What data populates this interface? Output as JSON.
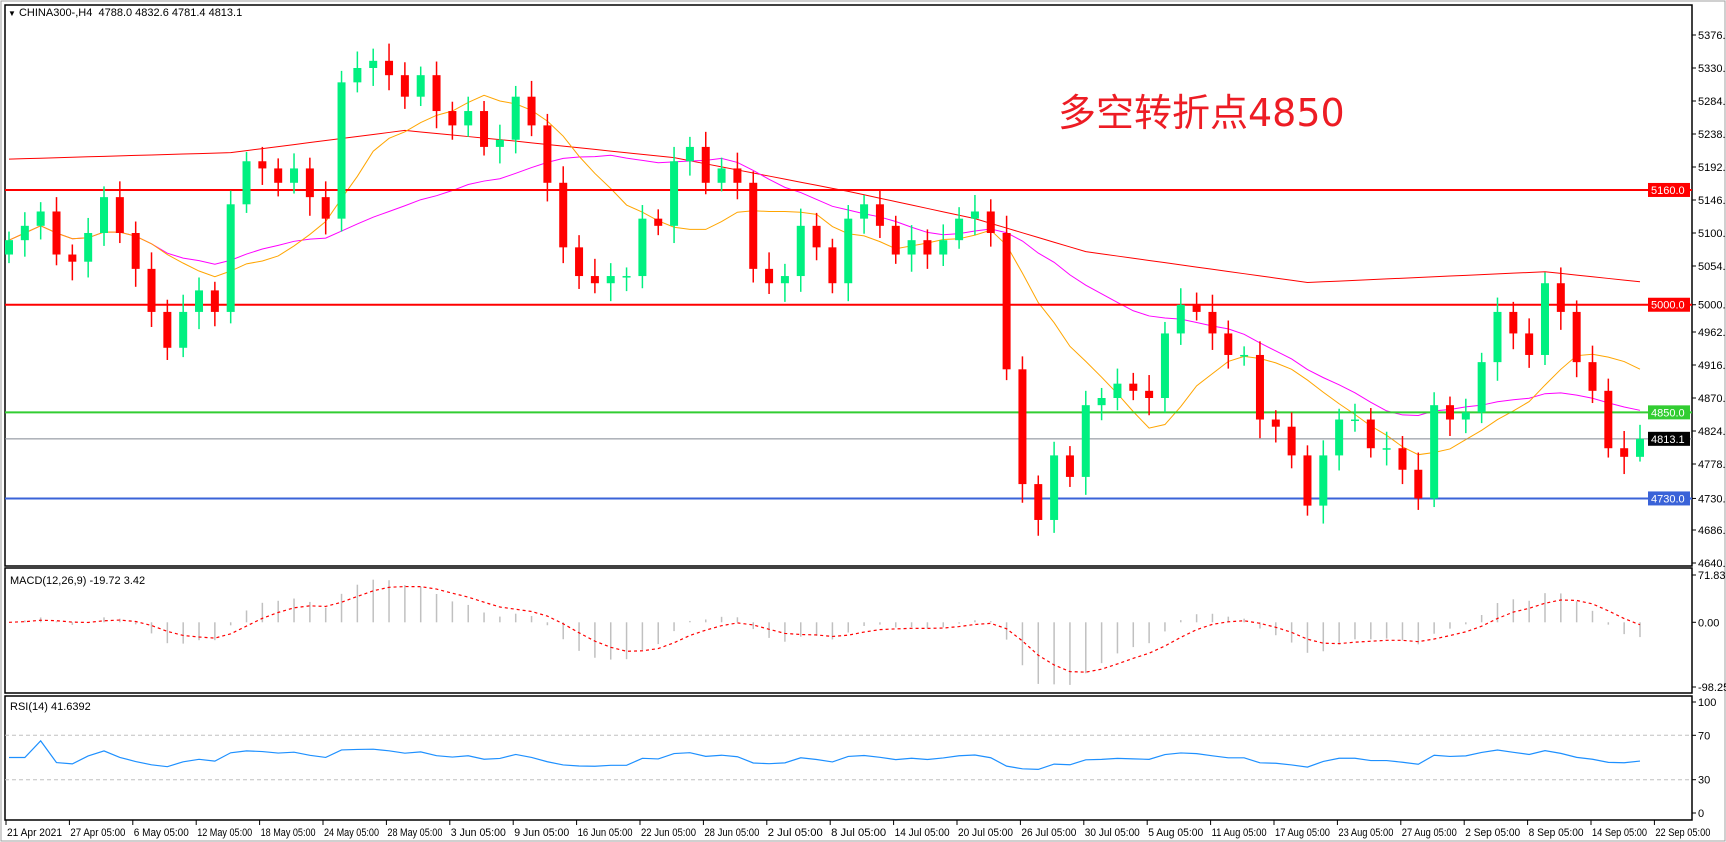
{
  "header": {
    "symbol_title": "CHINA300-,H4",
    "ohlc": "4788.0 4832.6 4781.4 4813.1"
  },
  "annotation": "多空转折点4850",
  "colors": {
    "bull": "#00f080",
    "bear": "#ff0000",
    "ma_fast": "#ffa500",
    "ma_mid": "#ff00ff",
    "ma_slow": "#ff0000",
    "macd_hist": "#c0c0c0",
    "macd_signal": "#ff0000",
    "rsi": "#1e90ff"
  },
  "chart_data": [
    {
      "type": "candlestick",
      "title": "CHINA300-,H4",
      "ylim": [
        4640,
        5400
      ],
      "y_ticks": [
        "5376.0",
        "5330.0",
        "5284.0",
        "5238.0",
        "5192.0",
        "5146.0",
        "5100.0",
        "5054.0",
        "5000.0",
        "4962.0",
        "4916.0",
        "4870.0",
        "4824.0",
        "4778.0",
        "4730.0",
        "4686.0",
        "4640.0"
      ],
      "x_ticks": [
        "21 Apr 2021",
        "27 Apr 05:00",
        "6 May 05:00",
        "12 May 05:00",
        "18 May 05:00",
        "24 May 05:00",
        "28 May 05:00",
        "3 Jun 05:00",
        "9 Jun 05:00",
        "16 Jun 05:00",
        "22 Jun 05:00",
        "28 Jun 05:00",
        "2 Jul 05:00",
        "8 Jul 05:00",
        "14 Jul 05:00",
        "20 Jul 05:00",
        "26 Jul 05:00",
        "30 Jul 05:00",
        "5 Aug 05:00",
        "11 Aug 05:00",
        "17 Aug 05:00",
        "23 Aug 05:00",
        "27 Aug 05:00",
        "2 Sep 05:00",
        "8 Sep 05:00",
        "14 Sep 05:00",
        "22 Sep 05:00"
      ],
      "first_open": 5070,
      "closes": [
        5090,
        5110,
        5130,
        5070,
        5060,
        5100,
        5150,
        5100,
        5050,
        4990,
        4940,
        4990,
        5020,
        4990,
        5140,
        5200,
        5190,
        5170,
        5190,
        5150,
        5120,
        5310,
        5330,
        5340,
        5320,
        5290,
        5320,
        5270,
        5250,
        5270,
        5220,
        5230,
        5290,
        5250,
        5170,
        5080,
        5040,
        5030,
        5040,
        5040,
        5120,
        5110,
        5200,
        5220,
        5170,
        5190,
        5170,
        5050,
        5030,
        5040,
        5110,
        5080,
        5030,
        5120,
        5140,
        5110,
        5070,
        5090,
        5070,
        5090,
        5120,
        5130,
        5100,
        4910,
        4750,
        4700,
        4790,
        4760,
        4860,
        4870,
        4890,
        4880,
        4870,
        4960,
        5000,
        4990,
        4960,
        4930,
        4930,
        4840,
        4830,
        4790,
        4720,
        4790,
        4840,
        4840,
        4800,
        4800,
        4770,
        4730,
        4860,
        4840,
        4850,
        4920,
        4990,
        4960,
        4930,
        5030,
        4990,
        4920,
        4880,
        4800,
        4788,
        4813.1
      ],
      "last_candle": {
        "open": 4788.0,
        "high": 4832.6,
        "low": 4781.4,
        "close": 4813.1
      },
      "slow_ma_knots": [
        [
          0,
          5203
        ],
        [
          14,
          5212
        ],
        [
          25,
          5243
        ],
        [
          32,
          5228
        ],
        [
          42,
          5205
        ],
        [
          53,
          5158
        ],
        [
          61,
          5120
        ],
        [
          68,
          5074
        ],
        [
          82,
          5031
        ],
        [
          97,
          5046
        ],
        [
          103,
          5032
        ]
      ],
      "horizontal_lines": [
        {
          "price": 5160,
          "label": "5160.0",
          "color": "#ff0000"
        },
        {
          "price": 5000,
          "label": "5000.0",
          "color": "#ff0000"
        },
        {
          "price": 4850,
          "label": "4850.0",
          "color": "#32cd32"
        },
        {
          "price": 4813.1,
          "label": "4813.1",
          "color": "#808890"
        },
        {
          "price": 4730,
          "label": "4730.0",
          "color": "#3a63d8"
        }
      ]
    },
    {
      "type": "bar",
      "title": "MACD(12,26,9) -19.72 3.42",
      "ylim": [
        -98.25,
        71.83
      ],
      "y_ticks": [
        "71.83",
        "0.00",
        "-98.25"
      ]
    },
    {
      "type": "line",
      "title": "RSI(14) 41.6392",
      "ylim": [
        0,
        100
      ],
      "y_ticks": [
        "100",
        "70",
        "30",
        "0"
      ],
      "levels": [
        70,
        30
      ]
    }
  ]
}
